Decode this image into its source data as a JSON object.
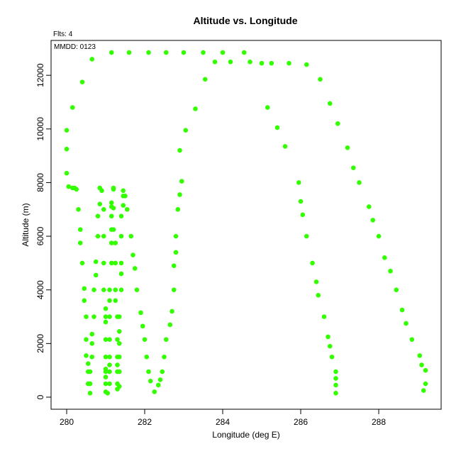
{
  "chart_data": {
    "type": "scatter",
    "title": "Altitude vs. Longitude",
    "xlabel": "Longitude (deg E)",
    "ylabel": "Altitude (m)",
    "annotations": {
      "flights": "Flts: 4",
      "date": "MMDD: 0123"
    },
    "xlim": [
      279.6,
      289.6
    ],
    "ylim": [
      -450,
      13300
    ],
    "x_ticks": [
      280,
      282,
      284,
      286,
      288
    ],
    "y_ticks": [
      0,
      2000,
      4000,
      6000,
      8000,
      10000,
      12000
    ],
    "grid": false,
    "point_color": "#33ff00",
    "points": [
      [
        280.0,
        9950
      ],
      [
        280.0,
        9250
      ],
      [
        280.0,
        8350
      ],
      [
        280.05,
        7850
      ],
      [
        280.15,
        7800
      ],
      [
        280.2,
        7800
      ],
      [
        280.25,
        7750
      ],
      [
        280.15,
        10800
      ],
      [
        280.4,
        11750
      ],
      [
        280.65,
        12600
      ],
      [
        281.15,
        12850
      ],
      [
        281.6,
        12850
      ],
      [
        282.1,
        12850
      ],
      [
        282.55,
        12850
      ],
      [
        283.0,
        12850
      ],
      [
        283.5,
        12850
      ],
      [
        283.8,
        12500
      ],
      [
        284.0,
        12850
      ],
      [
        284.2,
        12500
      ],
      [
        284.55,
        12850
      ],
      [
        284.7,
        12500
      ],
      [
        285.0,
        12450
      ],
      [
        285.25,
        12450
      ],
      [
        285.7,
        12450
      ],
      [
        286.15,
        12400
      ],
      [
        286.5,
        11850
      ],
      [
        286.75,
        10950
      ],
      [
        286.95,
        10200
      ],
      [
        287.2,
        9300
      ],
      [
        287.35,
        8550
      ],
      [
        287.5,
        8000
      ],
      [
        287.75,
        7100
      ],
      [
        287.85,
        6600
      ],
      [
        288.0,
        6000
      ],
      [
        288.15,
        5200
      ],
      [
        288.3,
        4700
      ],
      [
        288.45,
        4000
      ],
      [
        288.6,
        3250
      ],
      [
        288.7,
        2750
      ],
      [
        288.85,
        2150
      ],
      [
        289.05,
        1550
      ],
      [
        289.1,
        1200
      ],
      [
        289.2,
        1000
      ],
      [
        289.2,
        500
      ],
      [
        289.15,
        250
      ],
      [
        283.05,
        9950
      ],
      [
        282.9,
        9200
      ],
      [
        282.95,
        8050
      ],
      [
        282.9,
        7550
      ],
      [
        282.85,
        7000
      ],
      [
        282.8,
        6000
      ],
      [
        282.8,
        5400
      ],
      [
        282.75,
        4900
      ],
      [
        282.75,
        4000
      ],
      [
        282.7,
        3200
      ],
      [
        282.65,
        2700
      ],
      [
        282.55,
        2150
      ],
      [
        282.5,
        1500
      ],
      [
        282.45,
        950
      ],
      [
        282.4,
        650
      ],
      [
        282.35,
        450
      ],
      [
        282.25,
        200
      ],
      [
        282.15,
        600
      ],
      [
        282.1,
        950
      ],
      [
        282.05,
        1500
      ],
      [
        282.0,
        2150
      ],
      [
        281.95,
        2650
      ],
      [
        281.9,
        3150
      ],
      [
        281.8,
        4000
      ],
      [
        281.75,
        4800
      ],
      [
        281.7,
        5300
      ],
      [
        281.65,
        6000
      ],
      [
        281.55,
        7000
      ],
      [
        281.5,
        7500
      ],
      [
        281.45,
        7700
      ],
      [
        283.3,
        10750
      ],
      [
        283.55,
        11850
      ],
      [
        285.15,
        10800
      ],
      [
        285.4,
        10050
      ],
      [
        285.6,
        9350
      ],
      [
        285.95,
        8000
      ],
      [
        286.0,
        7300
      ],
      [
        286.05,
        6800
      ],
      [
        286.15,
        6000
      ],
      [
        286.3,
        5000
      ],
      [
        286.4,
        4300
      ],
      [
        286.45,
        3800
      ],
      [
        286.6,
        3000
      ],
      [
        286.7,
        2250
      ],
      [
        286.75,
        1900
      ],
      [
        286.8,
        1500
      ],
      [
        286.9,
        950
      ],
      [
        286.9,
        700
      ],
      [
        286.9,
        450
      ],
      [
        286.9,
        150
      ],
      [
        280.3,
        7000
      ],
      [
        280.35,
        6250
      ],
      [
        280.35,
        5750
      ],
      [
        280.4,
        5000
      ],
      [
        280.45,
        4050
      ],
      [
        280.45,
        3600
      ],
      [
        280.5,
        3000
      ],
      [
        280.5,
        2150
      ],
      [
        280.5,
        1550
      ],
      [
        280.55,
        1250
      ],
      [
        280.55,
        950
      ],
      [
        280.55,
        500
      ],
      [
        280.6,
        150
      ],
      [
        280.6,
        500
      ],
      [
        280.6,
        950
      ],
      [
        280.65,
        1500
      ],
      [
        280.65,
        2000
      ],
      [
        280.65,
        2350
      ],
      [
        280.7,
        3000
      ],
      [
        280.7,
        4000
      ],
      [
        280.75,
        4550
      ],
      [
        280.75,
        5050
      ],
      [
        280.8,
        6000
      ],
      [
        280.8,
        6750
      ],
      [
        280.85,
        7200
      ],
      [
        280.85,
        7800
      ],
      [
        280.9,
        7700
      ],
      [
        280.95,
        7000
      ],
      [
        280.95,
        6000
      ],
      [
        280.95,
        5000
      ],
      [
        280.95,
        4000
      ],
      [
        281.0,
        3300
      ],
      [
        281.0,
        3000
      ],
      [
        281.0,
        2800
      ],
      [
        281.0,
        2150
      ],
      [
        281.0,
        1500
      ],
      [
        281.0,
        1050
      ],
      [
        281.0,
        950
      ],
      [
        281.0,
        750
      ],
      [
        281.0,
        500
      ],
      [
        281.0,
        200
      ],
      [
        281.05,
        150
      ],
      [
        281.1,
        500
      ],
      [
        281.1,
        950
      ],
      [
        281.1,
        1200
      ],
      [
        281.1,
        1500
      ],
      [
        281.1,
        2150
      ],
      [
        281.1,
        3000
      ],
      [
        281.1,
        3600
      ],
      [
        281.1,
        4000
      ],
      [
        281.15,
        5000
      ],
      [
        281.15,
        5750
      ],
      [
        281.15,
        6250
      ],
      [
        281.15,
        6750
      ],
      [
        281.15,
        7100
      ],
      [
        281.15,
        7250
      ],
      [
        281.2,
        7800
      ],
      [
        281.2,
        7750
      ],
      [
        281.2,
        7050
      ],
      [
        281.2,
        6250
      ],
      [
        281.25,
        5750
      ],
      [
        281.25,
        5000
      ],
      [
        281.25,
        4000
      ],
      [
        281.25,
        3600
      ],
      [
        281.3,
        3000
      ],
      [
        281.3,
        2150
      ],
      [
        281.3,
        1500
      ],
      [
        281.3,
        1200
      ],
      [
        281.3,
        950
      ],
      [
        281.3,
        500
      ],
      [
        281.3,
        300
      ],
      [
        281.35,
        400
      ],
      [
        281.35,
        950
      ],
      [
        281.35,
        1500
      ],
      [
        281.35,
        2000
      ],
      [
        281.35,
        2450
      ],
      [
        281.35,
        3000
      ],
      [
        281.4,
        4000
      ],
      [
        281.4,
        4600
      ],
      [
        281.4,
        5000
      ],
      [
        281.4,
        6000
      ],
      [
        281.4,
        6750
      ],
      [
        281.45,
        7150
      ],
      [
        281.45,
        7500
      ]
    ]
  }
}
